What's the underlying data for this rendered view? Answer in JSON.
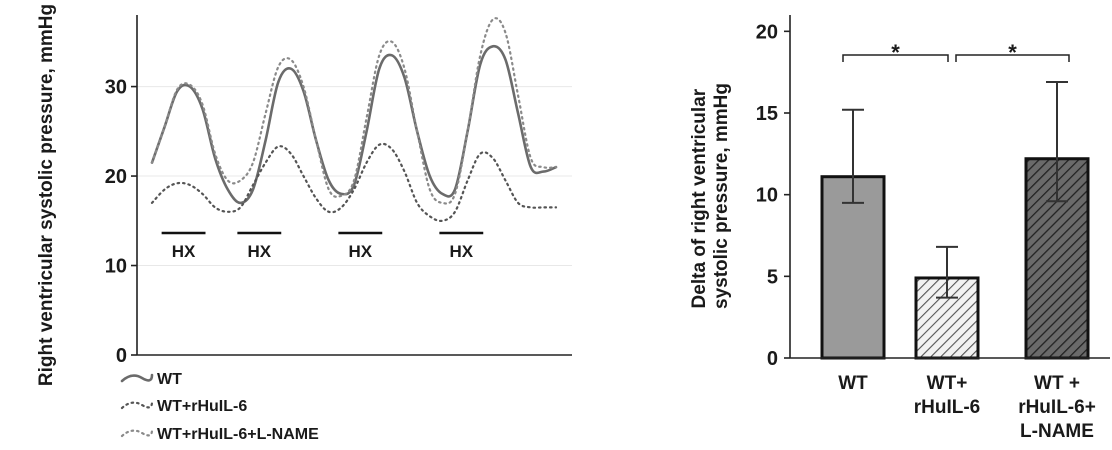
{
  "chart_data": [
    {
      "type": "line",
      "ylabel": "Right ventricular systolic pressure, mmHg",
      "ylim": [
        0,
        38
      ],
      "yticks": [
        0,
        10,
        20,
        30
      ],
      "grid": "horizontal",
      "annotations": [
        "HX",
        "HX",
        "HX",
        "HX"
      ],
      "hx_periods": [
        [
          0.5,
          2.0
        ],
        [
          3.5,
          5.0
        ],
        [
          7.5,
          9.0
        ],
        [
          11.5,
          13.0
        ]
      ],
      "x": [
        0,
        0.5,
        1,
        1.5,
        2,
        2.5,
        3,
        3.5,
        4,
        4.5,
        5,
        5.5,
        6,
        6.5,
        7,
        7.5,
        8,
        8.5,
        9,
        9.5,
        10,
        10.5,
        11,
        11.5,
        12,
        12.5,
        13,
        13.5,
        14,
        14.5,
        15,
        15.5,
        16
      ],
      "series": [
        {
          "name": "WT",
          "style": "solid",
          "color": "#6b6b6b",
          "values": [
            21.5,
            25.5,
            29.5,
            30,
            27.5,
            22,
            18.5,
            17,
            18.5,
            24,
            30.5,
            32,
            29.5,
            24,
            19.5,
            18,
            19,
            25,
            32,
            33.5,
            31,
            25,
            20,
            18,
            18.5,
            25,
            32.5,
            34.5,
            33,
            27,
            21,
            20.5,
            21
          ]
        },
        {
          "name": "WT+rHuIL-6",
          "style": "dotted",
          "color": "#555555",
          "values": [
            17,
            18.5,
            19.2,
            19,
            18,
            16.5,
            16,
            16.5,
            19,
            21.5,
            23.3,
            22.5,
            20,
            17.5,
            16,
            16.5,
            18.5,
            21.5,
            23.5,
            23,
            20.5,
            17,
            15.5,
            15,
            16,
            19.5,
            22.5,
            22,
            19.5,
            17,
            16.5,
            16.5,
            16.5
          ]
        },
        {
          "name": "WT+rHuIL-6+L-NAME",
          "style": "dotted",
          "color": "#8a8a8a",
          "values": [
            21.5,
            25.5,
            29.7,
            30.2,
            28,
            22.5,
            19.5,
            19.5,
            21.5,
            27,
            32.2,
            33,
            30,
            24,
            18.5,
            17.8,
            19.5,
            26.5,
            33.5,
            35,
            32,
            25,
            18.5,
            17,
            18,
            25,
            33.5,
            37.5,
            36,
            29,
            22,
            21,
            21
          ]
        }
      ],
      "legend": {
        "position": "bottom-left",
        "entries": [
          "WT",
          "WT+rHuIL-6",
          "WT+rHuIL-6+L-NAME"
        ]
      }
    },
    {
      "type": "bar",
      "ylabel": "Delta of right ventricular systolic pressure, mmHg",
      "ylim": [
        0,
        21
      ],
      "yticks": [
        0,
        5,
        10,
        15,
        20
      ],
      "categories": [
        "WT",
        "WT+ rHuIL-6",
        "WT + rHuIL-6+ L-NAME"
      ],
      "category_lines": [
        [
          "WT"
        ],
        [
          "WT+",
          "rHuIL-6"
        ],
        [
          "WT +",
          "rHuIL-6+",
          "L-NAME"
        ]
      ],
      "values": [
        11.1,
        4.9,
        12.2
      ],
      "error_low": [
        9.5,
        3.7,
        9.6
      ],
      "error_high": [
        15.2,
        6.8,
        16.9
      ],
      "bar_colors": [
        "#9a9a9a",
        "#e0e0e0",
        "#5a5a5a"
      ],
      "bar_patterns": [
        "solid",
        "hatch-light",
        "hatch-dark"
      ],
      "significance": [
        {
          "from": 0,
          "to": 1,
          "label": "*"
        },
        {
          "from": 1,
          "to": 2,
          "label": "*"
        }
      ]
    }
  ]
}
